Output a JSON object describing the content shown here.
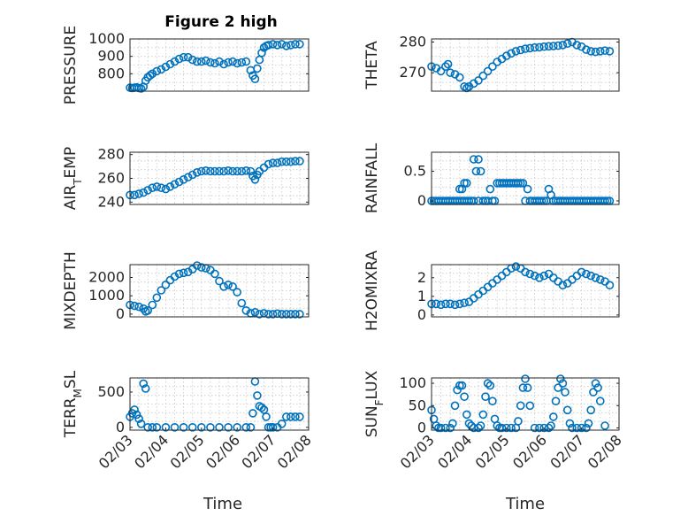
{
  "figure": {
    "title": "Figure 2 high",
    "xlabel": "Time"
  },
  "colors": {
    "marker": "#0072bd",
    "axes": "#262626",
    "grid": "#c8c8c8"
  },
  "chart_data": [
    {
      "type": "scatter",
      "ylabel": "PRESSURE",
      "title": "Figure 2 high",
      "xlim": [
        0,
        4
      ],
      "xticks": [],
      "ylim": [
        700,
        1000
      ],
      "yticks": [
        800,
        900,
        1000
      ],
      "ytick_labels": [
        "800",
        "900",
        "1000"
      ],
      "grid": true,
      "series": [
        {
          "x": [
            0,
            0.05,
            0.1,
            0.15,
            0.2,
            0.25,
            0.3,
            0.35,
            0.4,
            0.45,
            0.5,
            0.6,
            0.7,
            0.8,
            0.9,
            1.0,
            1.1,
            1.2,
            1.3,
            1.4,
            1.5,
            1.6,
            1.7,
            1.8,
            1.9,
            2.0,
            2.1,
            2.2,
            2.3,
            2.4,
            2.5,
            2.6,
            2.7,
            2.75,
            2.8,
            2.85,
            2.9,
            2.95,
            3.0,
            3.05,
            3.1,
            3.2,
            3.3,
            3.4,
            3.5,
            3.6,
            3.7,
            3.8
          ],
          "y": [
            720,
            718,
            720,
            722,
            718,
            715,
            725,
            760,
            780,
            790,
            800,
            815,
            825,
            840,
            855,
            870,
            885,
            895,
            895,
            880,
            870,
            870,
            875,
            865,
            860,
            870,
            855,
            865,
            870,
            860,
            865,
            870,
            820,
            790,
            770,
            830,
            880,
            920,
            950,
            960,
            965,
            970,
            965,
            970,
            960,
            965,
            970,
            970
          ]
        }
      ]
    },
    {
      "type": "scatter",
      "ylabel": "THETA",
      "xlim": [
        0,
        4
      ],
      "xticks": [],
      "ylim": [
        264,
        281
      ],
      "yticks": [
        270,
        280
      ],
      "ytick_labels": [
        "270",
        "280"
      ],
      "grid": true,
      "series": [
        {
          "x": [
            0,
            0.1,
            0.2,
            0.3,
            0.35,
            0.4,
            0.5,
            0.6,
            0.7,
            0.75,
            0.8,
            0.9,
            1.0,
            1.1,
            1.2,
            1.3,
            1.4,
            1.5,
            1.6,
            1.7,
            1.8,
            1.9,
            2.0,
            2.1,
            2.2,
            2.3,
            2.4,
            2.5,
            2.6,
            2.7,
            2.8,
            2.9,
            3.0,
            3.1,
            3.2,
            3.3,
            3.4,
            3.5,
            3.6,
            3.7,
            3.8
          ],
          "y": [
            272,
            271.5,
            270.5,
            272,
            272.8,
            270,
            269.5,
            268.5,
            265.5,
            265,
            265.5,
            266.5,
            267.5,
            269,
            270.5,
            272,
            273.5,
            274.5,
            275.5,
            276.3,
            277,
            277.4,
            277.8,
            278,
            278.2,
            278.3,
            278.5,
            278.6,
            278.7,
            278.8,
            279,
            279.5,
            280,
            279,
            278.5,
            277.5,
            277,
            276.8,
            277,
            277.2,
            277
          ]
        }
      ]
    },
    {
      "type": "scatter",
      "ylabel": "AIR_TEMP",
      "xlim": [
        0,
        4
      ],
      "xticks": [],
      "ylim": [
        238,
        282
      ],
      "yticks": [
        240,
        260,
        280
      ],
      "ytick_labels": [
        "240",
        "260",
        "280"
      ],
      "grid": true,
      "series": [
        {
          "x": [
            0,
            0.1,
            0.2,
            0.3,
            0.4,
            0.5,
            0.6,
            0.7,
            0.8,
            0.9,
            1.0,
            1.1,
            1.2,
            1.3,
            1.4,
            1.5,
            1.6,
            1.7,
            1.8,
            1.9,
            2.0,
            2.1,
            2.2,
            2.3,
            2.4,
            2.5,
            2.6,
            2.7,
            2.75,
            2.8,
            2.85,
            2.9,
            3.0,
            3.1,
            3.2,
            3.3,
            3.4,
            3.5,
            3.6,
            3.7,
            3.8
          ],
          "y": [
            246,
            246,
            247,
            248,
            250,
            252,
            253,
            252,
            251,
            253,
            255,
            257,
            259,
            261,
            263,
            265,
            266,
            266.5,
            266,
            266,
            266,
            266,
            266.5,
            266,
            266,
            266,
            266.5,
            266,
            262,
            259,
            263,
            266,
            269,
            272,
            273,
            273,
            274,
            274,
            274,
            274.5,
            274.5
          ]
        }
      ]
    },
    {
      "type": "scatter",
      "ylabel": "RAINFALL",
      "xlim": [
        0,
        4
      ],
      "xticks": [],
      "ylim": [
        -0.06,
        0.82
      ],
      "yticks": [
        0,
        0.5
      ],
      "ytick_labels": [
        "0",
        "0.5"
      ],
      "grid": true,
      "series": [
        {
          "x": [
            0,
            0.05,
            0.1,
            0.15,
            0.2,
            0.25,
            0.3,
            0.35,
            0.4,
            0.45,
            0.5,
            0.55,
            0.6,
            0.6,
            0.65,
            0.65,
            0.7,
            0.7,
            0.75,
            0.75,
            0.8,
            0.85,
            0.9,
            0.9,
            0.95,
            1.0,
            1.0,
            1.05,
            1.1,
            1.15,
            1.2,
            1.25,
            1.3,
            1.35,
            1.4,
            1.45,
            1.5,
            1.55,
            1.6,
            1.65,
            1.7,
            1.75,
            1.8,
            1.85,
            1.9,
            1.95,
            2.0,
            2.05,
            2.1,
            2.15,
            2.2,
            2.25,
            2.3,
            2.35,
            2.4,
            2.45,
            2.5,
            2.55,
            2.6,
            2.65,
            2.7,
            2.75,
            2.8,
            2.85,
            2.9,
            2.95,
            3.0,
            3.05,
            3.1,
            3.15,
            3.2,
            3.25,
            3.3,
            3.35,
            3.4,
            3.45,
            3.5,
            3.55,
            3.6,
            3.65,
            3.7,
            3.75,
            3.8
          ],
          "y": [
            0,
            0,
            0,
            0,
            0,
            0,
            0,
            0,
            0,
            0,
            0,
            0,
            0,
            0.2,
            0.2,
            0,
            0.3,
            0,
            0.3,
            0,
            0,
            0,
            0.7,
            0,
            0.5,
            0.7,
            0,
            0.5,
            0,
            0,
            0,
            0.2,
            0,
            0,
            0.3,
            0.3,
            0.3,
            0.3,
            0.3,
            0.3,
            0.3,
            0.3,
            0.3,
            0.3,
            0.3,
            0.3,
            0,
            0.2,
            0,
            0,
            0,
            0,
            0,
            0,
            0,
            0,
            0.2,
            0.1,
            0,
            0,
            0,
            0,
            0,
            0,
            0,
            0,
            0,
            0,
            0,
            0,
            0,
            0,
            0,
            0,
            0,
            0,
            0,
            0,
            0,
            0,
            0,
            0,
            0
          ]
        }
      ]
    },
    {
      "type": "scatter",
      "ylabel": "MIXDEPTH",
      "xlim": [
        0,
        4
      ],
      "xticks": [],
      "ylim": [
        -150,
        2700
      ],
      "yticks": [
        0,
        1000,
        2000
      ],
      "ytick_labels": [
        "0",
        "1000",
        "2000"
      ],
      "grid": true,
      "series": [
        {
          "x": [
            0,
            0.1,
            0.2,
            0.3,
            0.35,
            0.4,
            0.5,
            0.6,
            0.7,
            0.8,
            0.9,
            1.0,
            1.1,
            1.2,
            1.3,
            1.4,
            1.5,
            1.6,
            1.7,
            1.8,
            1.9,
            2.0,
            2.1,
            2.2,
            2.3,
            2.4,
            2.5,
            2.6,
            2.7,
            2.8,
            2.9,
            3.0,
            3.1,
            3.2,
            3.3,
            3.4,
            3.5,
            3.6,
            3.7,
            3.8
          ],
          "y": [
            500,
            450,
            400,
            300,
            150,
            200,
            500,
            900,
            1300,
            1600,
            1850,
            2050,
            2200,
            2250,
            2300,
            2450,
            2650,
            2550,
            2500,
            2400,
            2200,
            1800,
            1500,
            1600,
            1500,
            1200,
            600,
            200,
            50,
            100,
            0,
            50,
            0,
            0,
            30,
            0,
            0,
            0,
            0,
            0
          ]
        }
      ]
    },
    {
      "type": "scatter",
      "ylabel": "H2OMIXRA",
      "xlim": [
        0,
        4
      ],
      "xticks": [],
      "ylim": [
        -0.1,
        2.7
      ],
      "yticks": [
        0,
        1,
        2
      ],
      "ytick_labels": [
        "0",
        "1",
        "2"
      ],
      "grid": true,
      "series": [
        {
          "x": [
            0,
            0.1,
            0.2,
            0.3,
            0.4,
            0.5,
            0.6,
            0.7,
            0.8,
            0.9,
            1.0,
            1.1,
            1.2,
            1.3,
            1.4,
            1.5,
            1.6,
            1.7,
            1.8,
            1.9,
            2.0,
            2.1,
            2.2,
            2.3,
            2.4,
            2.5,
            2.6,
            2.7,
            2.8,
            2.9,
            3.0,
            3.1,
            3.2,
            3.3,
            3.4,
            3.5,
            3.6,
            3.7,
            3.8
          ],
          "y": [
            0.6,
            0.6,
            0.55,
            0.6,
            0.6,
            0.55,
            0.6,
            0.65,
            0.7,
            0.9,
            1.1,
            1.3,
            1.5,
            1.7,
            1.9,
            2.1,
            2.3,
            2.5,
            2.6,
            2.5,
            2.3,
            2.2,
            2.1,
            2.0,
            2.1,
            2.2,
            2.0,
            1.8,
            1.6,
            1.7,
            1.9,
            2.1,
            2.3,
            2.2,
            2.1,
            2.0,
            1.9,
            1.8,
            1.6
          ]
        }
      ]
    },
    {
      "type": "scatter",
      "ylabel": "TERR_MSL",
      "xlim": [
        0,
        4
      ],
      "xticks": [
        0,
        1,
        2,
        3,
        4,
        5
      ],
      "xtick_labels": [
        "02/03",
        "02/04",
        "02/05",
        "02/06",
        "02/07",
        "02/08"
      ],
      "xlabel": "Time",
      "ylim": [
        -40,
        700
      ],
      "yticks": [
        0,
        500
      ],
      "ytick_labels": [
        "0",
        "500"
      ],
      "grid": true,
      "series": [
        {
          "x": [
            0,
            0.05,
            0.1,
            0.15,
            0.2,
            0.25,
            0.3,
            0.35,
            0.4,
            0.5,
            0.6,
            0.8,
            1.0,
            1.2,
            1.4,
            1.6,
            1.8,
            2.0,
            2.2,
            2.4,
            2.6,
            2.7,
            2.75,
            2.8,
            2.85,
            2.9,
            2.95,
            3.0,
            3.05,
            3.1,
            3.15,
            3.2,
            3.3,
            3.4,
            3.5,
            3.6,
            3.7,
            3.8
          ],
          "y": [
            150,
            200,
            250,
            180,
            120,
            50,
            620,
            550,
            0,
            0,
            0,
            0,
            0,
            0,
            0,
            0,
            0,
            0,
            0,
            0,
            0,
            0,
            200,
            650,
            450,
            300,
            280,
            250,
            150,
            0,
            0,
            0,
            0,
            50,
            150,
            150,
            150,
            150
          ]
        }
      ]
    },
    {
      "type": "scatter",
      "ylabel": "SUN_FLUX",
      "xlim": [
        0,
        4
      ],
      "xticks": [
        0,
        1,
        2,
        3,
        4,
        5
      ],
      "xtick_labels": [
        "02/03",
        "02/04",
        "02/05",
        "02/06",
        "02/07",
        "02/08"
      ],
      "xlabel": "Time",
      "ylim": [
        -5,
        112
      ],
      "yticks": [
        0,
        50,
        100
      ],
      "ytick_labels": [
        "0",
        "50",
        "100"
      ],
      "grid": true,
      "series": [
        {
          "x": [
            0,
            0.05,
            0.1,
            0.15,
            0.2,
            0.3,
            0.4,
            0.45,
            0.5,
            0.55,
            0.6,
            0.65,
            0.7,
            0.75,
            0.8,
            0.85,
            0.9,
            1.0,
            1.05,
            1.1,
            1.15,
            1.2,
            1.25,
            1.3,
            1.35,
            1.4,
            1.45,
            1.5,
            1.6,
            1.7,
            1.8,
            1.85,
            1.9,
            1.95,
            2.0,
            2.05,
            2.1,
            2.2,
            2.3,
            2.4,
            2.5,
            2.55,
            2.6,
            2.65,
            2.7,
            2.75,
            2.8,
            2.85,
            2.9,
            2.95,
            3.0,
            3.1,
            3.2,
            3.3,
            3.35,
            3.4,
            3.45,
            3.5,
            3.55,
            3.6,
            3.7
          ],
          "y": [
            40,
            20,
            5,
            0,
            0,
            0,
            0,
            10,
            50,
            85,
            95,
            95,
            70,
            30,
            10,
            5,
            0,
            0,
            5,
            30,
            70,
            100,
            95,
            60,
            20,
            5,
            0,
            0,
            0,
            0,
            0,
            15,
            50,
            90,
            110,
            90,
            50,
            0,
            0,
            0,
            0,
            5,
            25,
            60,
            90,
            110,
            100,
            80,
            40,
            10,
            0,
            0,
            0,
            0,
            10,
            40,
            80,
            100,
            90,
            60,
            5
          ]
        }
      ]
    }
  ]
}
